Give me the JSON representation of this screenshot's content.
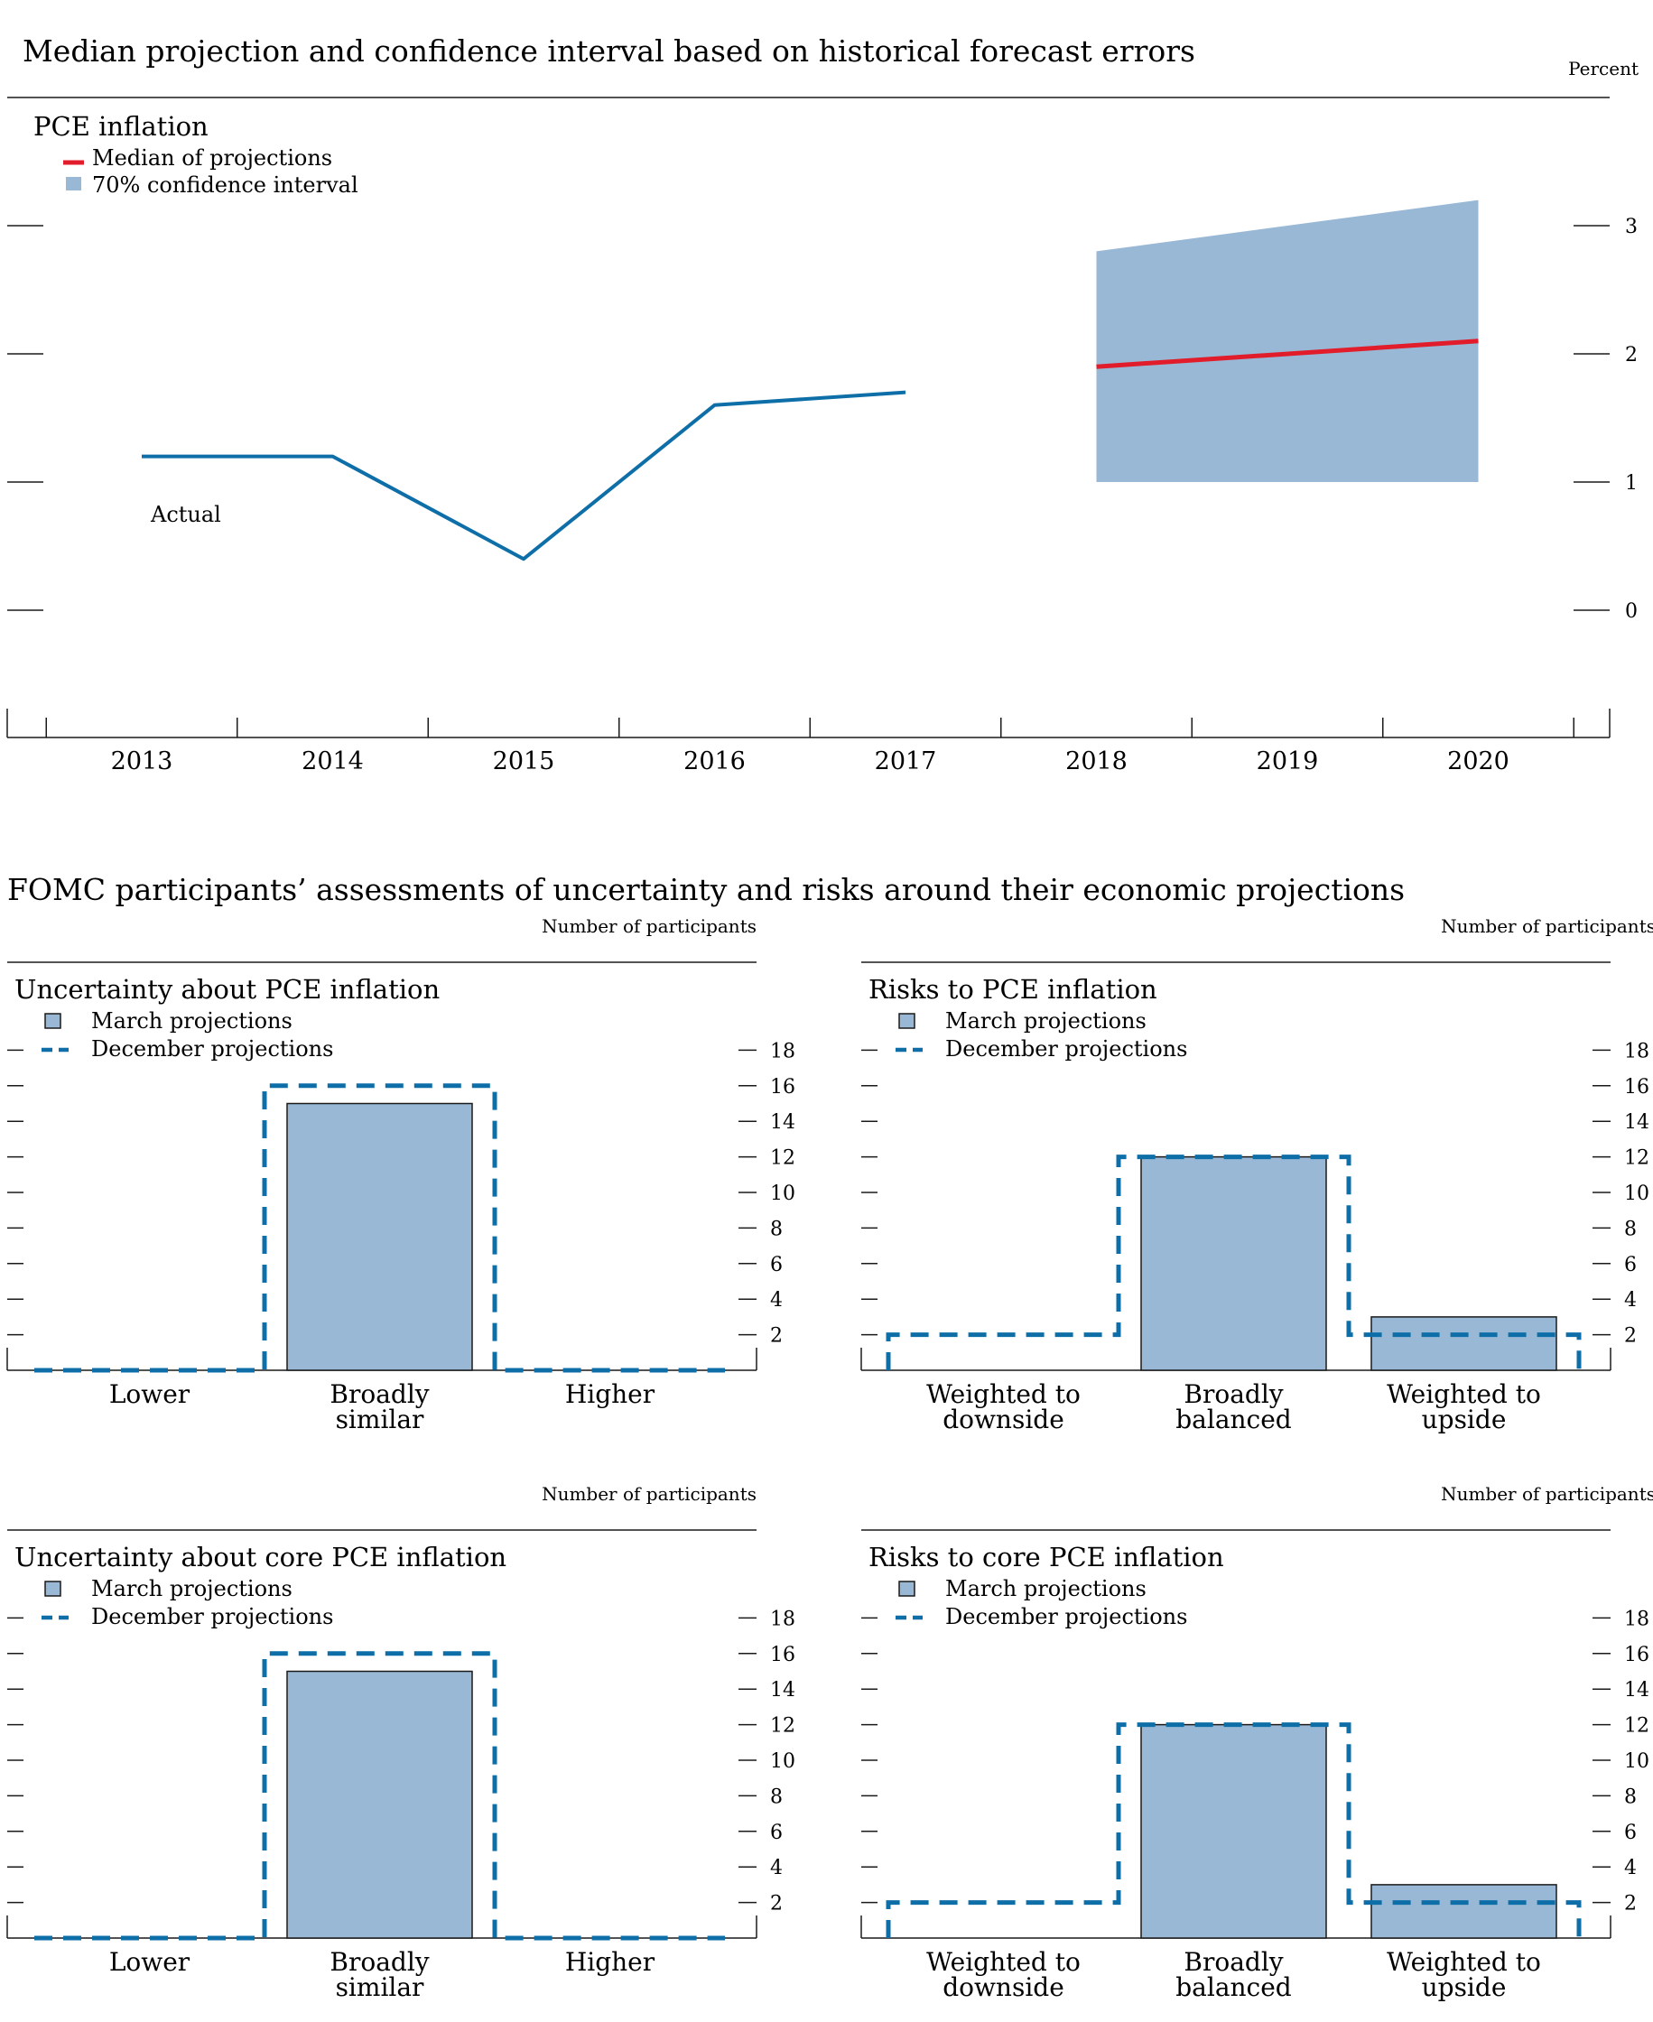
{
  "top": {
    "title": "Median projection and confidence interval based on historical forecast errors",
    "unit": "Percent",
    "panel_title": "PCE inflation",
    "legend": {
      "median": "Median of projections",
      "ci": "70% confidence interval"
    },
    "annotation": "Actual",
    "colors": {
      "actual": "#0e6fa8",
      "median": "#e11d2b",
      "ci": "#98b8d5"
    }
  },
  "bottom": {
    "title": "FOMC participants’ assessments of uncertainty and risks around their economic projections",
    "colors": {
      "bar": "#98b8d5",
      "bar_edge": "#1a1a1a",
      "december": "#0e6fa8"
    }
  },
  "chart_data": [
    {
      "type": "line",
      "title": "PCE inflation",
      "ylabel": "Percent",
      "ylim": [
        -0.8,
        3.3
      ],
      "yticks": [
        "0",
        "1",
        "2",
        "3"
      ],
      "x": [
        "2013",
        "2014",
        "2015",
        "2016",
        "2017",
        "2018",
        "2019",
        "2020"
      ],
      "series": [
        {
          "name": "Actual",
          "x": [
            "2013",
            "2014",
            "2015",
            "2016",
            "2017"
          ],
          "values": [
            1.2,
            1.2,
            0.4,
            1.6,
            1.7
          ]
        },
        {
          "name": "Median of projections",
          "x": [
            "2018",
            "2020"
          ],
          "values": [
            1.9,
            2.1
          ]
        }
      ],
      "confidence_interval": {
        "name": "70% confidence interval",
        "x": [
          "2018",
          "2020"
        ],
        "lower": [
          1.0,
          1.0
        ],
        "upper": [
          2.8,
          3.2
        ]
      },
      "grid": false,
      "legend": "top-left"
    },
    {
      "type": "bar",
      "title": "Uncertainty about PCE inflation",
      "unit": "Number of participants",
      "categories": [
        "Lower|",
        "Broadly|similar",
        "Higher|"
      ],
      "series": [
        {
          "name": "March projections",
          "values": [
            0,
            15,
            0
          ]
        },
        {
          "name": "December projections",
          "values": [
            0,
            16,
            0
          ]
        }
      ],
      "ylim": [
        0,
        18
      ],
      "yticks": [
        "2",
        "4",
        "6",
        "8",
        "10",
        "12",
        "14",
        "16",
        "18"
      ],
      "legend": "top-left"
    },
    {
      "type": "bar",
      "title": "Risks to PCE inflation",
      "unit": "Number of participants",
      "categories": [
        "Weighted to|downside",
        "Broadly|balanced",
        "Weighted to|upside"
      ],
      "series": [
        {
          "name": "March projections",
          "values": [
            0,
            12,
            3
          ]
        },
        {
          "name": "December projections",
          "values": [
            2,
            12,
            2
          ]
        }
      ],
      "ylim": [
        0,
        18
      ],
      "yticks": [
        "2",
        "4",
        "6",
        "8",
        "10",
        "12",
        "14",
        "16",
        "18"
      ],
      "legend": "top-left"
    },
    {
      "type": "bar",
      "title": "Uncertainty about core PCE inflation",
      "unit": "Number of participants",
      "categories": [
        "Lower|",
        "Broadly|similar",
        "Higher|"
      ],
      "series": [
        {
          "name": "March projections",
          "values": [
            0,
            15,
            0
          ]
        },
        {
          "name": "December projections",
          "values": [
            0,
            16,
            0
          ]
        }
      ],
      "ylim": [
        0,
        18
      ],
      "yticks": [
        "2",
        "4",
        "6",
        "8",
        "10",
        "12",
        "14",
        "16",
        "18"
      ],
      "legend": "top-left"
    },
    {
      "type": "bar",
      "title": "Risks to core PCE inflation",
      "unit": "Number of participants",
      "categories": [
        "Weighted to|downside",
        "Broadly|balanced",
        "Weighted to|upside"
      ],
      "series": [
        {
          "name": "March projections",
          "values": [
            0,
            12,
            3
          ]
        },
        {
          "name": "December projections",
          "values": [
            2,
            12,
            2
          ]
        }
      ],
      "ylim": [
        0,
        18
      ],
      "yticks": [
        "2",
        "4",
        "6",
        "8",
        "10",
        "12",
        "14",
        "16",
        "18"
      ],
      "legend": "top-left"
    }
  ]
}
